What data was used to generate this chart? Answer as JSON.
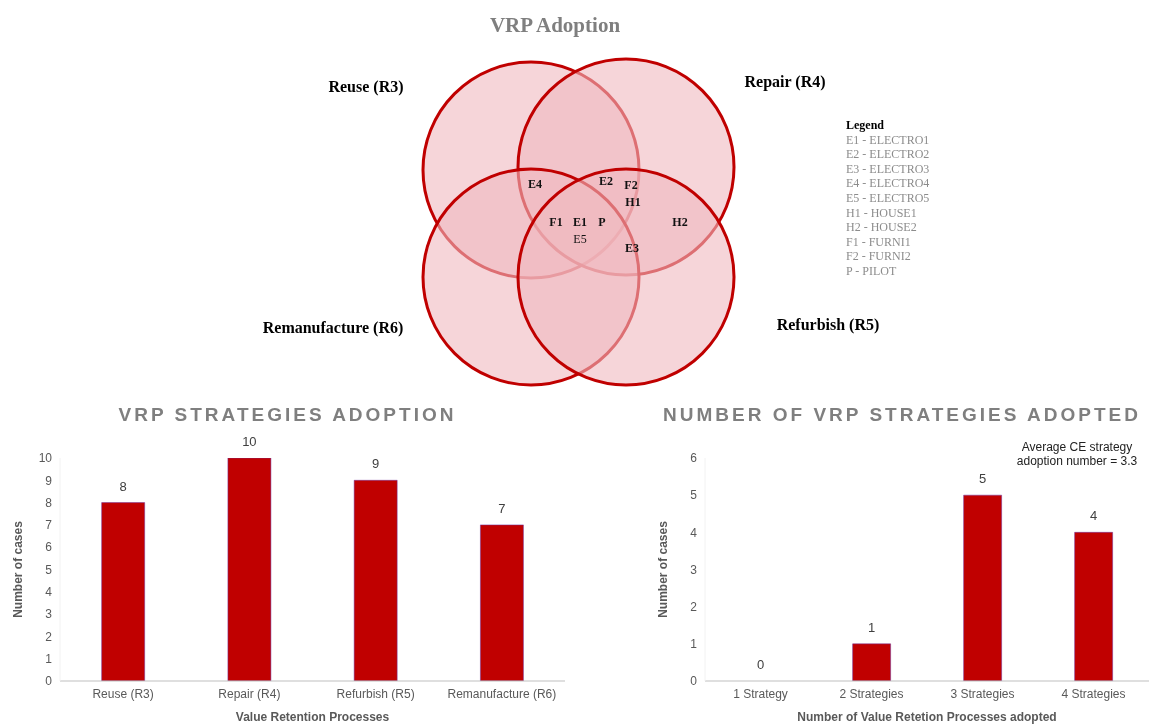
{
  "chart_data": [
    {
      "type": "other",
      "title": "VRP Adoption",
      "categories": [
        "Reuse (R3)",
        "Repair (R4)",
        "Remanufacture (R6)",
        "Refurbish (R5)"
      ],
      "colors": [
        "#f0b9c0",
        "#f0b9c0",
        "#f0b9c0",
        "#f0b9c0"
      ],
      "legend_title": "Legend",
      "annotations": [
        "E4",
        "E2",
        "F2",
        "H1",
        "F1",
        "E1",
        "P",
        "E5",
        "E3",
        "H2",
        "E1 - ELECTRO1",
        "E2 - ELECTRO2",
        "E3 - ELECTRO3",
        "E4 - ELECTRO4",
        "E5 - ELECTRO5",
        "H1 - HOUSE1",
        "H2 - HOUSE2",
        "F1 - FURNI1",
        "F2 - FURNI2",
        "P - PILOT"
      ]
    },
    {
      "type": "bar",
      "title": "VRP STRATEGIES ADOPTION",
      "categories": [
        "Reuse (R3)",
        "Repair (R4)",
        "Refurbish (R5)",
        "Remanufacture (R6)"
      ],
      "values": [
        8,
        10,
        9,
        7
      ],
      "color": "#c00000",
      "ylim": [
        0,
        10
      ],
      "yticks": [
        0,
        1,
        2,
        3,
        4,
        5,
        6,
        7,
        8,
        9,
        10
      ],
      "xlabel": "Value Retention Processes",
      "ylabel": "Number of cases",
      "data_labels": true
    },
    {
      "type": "bar",
      "title": "NUMBER OF VRP STRATEGIES ADOPTED",
      "categories": [
        "1 Strategy",
        "2 Strategies",
        "3 Strategies",
        "4 Strategies"
      ],
      "values": [
        0,
        1,
        5,
        4
      ],
      "color": "#c00000",
      "ylim": [
        0,
        6
      ],
      "yticks": [
        0,
        1,
        2,
        3,
        4,
        5,
        6
      ],
      "xlabel": "Number of  Value Retetion Processes adopted",
      "ylabel": "Number of cases",
      "data_labels": true,
      "annotations": [
        "Average CE strategy adoption number = 3.3"
      ]
    }
  ]
}
